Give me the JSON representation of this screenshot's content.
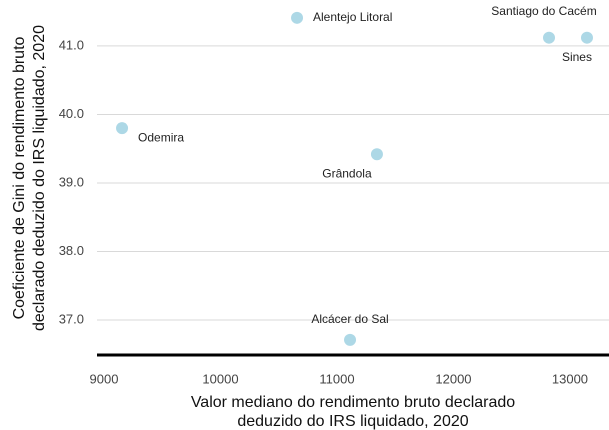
{
  "chart_data": {
    "type": "scatter",
    "xlabel": [
      "Valor mediano do rendimento bruto declarado",
      "deduzido do IRS liquidado, 2020"
    ],
    "ylabel": [
      "Coeficiente de Gini do rendimento bruto",
      "declarado deduzido do IRS liquidado, 2020"
    ],
    "labels": [
      "Alentejo Litoral",
      "Santiago do Cacém",
      "Sines",
      "Odemira",
      "Grândola",
      "Alcácer do Sal"
    ],
    "x": [
      10657,
      12820,
      13146,
      9155,
      11343,
      11112
    ],
    "values": [
      41.41,
      41.12,
      41.12,
      39.8,
      39.42,
      36.71
    ],
    "color": "#add8e6",
    "xlim": [
      8940,
      13335
    ],
    "ylim": [
      36.49,
      41.67
    ],
    "xticks": [
      9000,
      10000,
      11000,
      12000,
      13000
    ],
    "yticks": [
      {
        "value": 37,
        "label": "37.0"
      },
      {
        "value": 38,
        "label": "38.0"
      },
      {
        "value": 39,
        "label": "39.0"
      },
      {
        "value": 40,
        "label": "40.0"
      },
      {
        "value": 41,
        "label": "41.0"
      }
    ],
    "grid": true
  }
}
